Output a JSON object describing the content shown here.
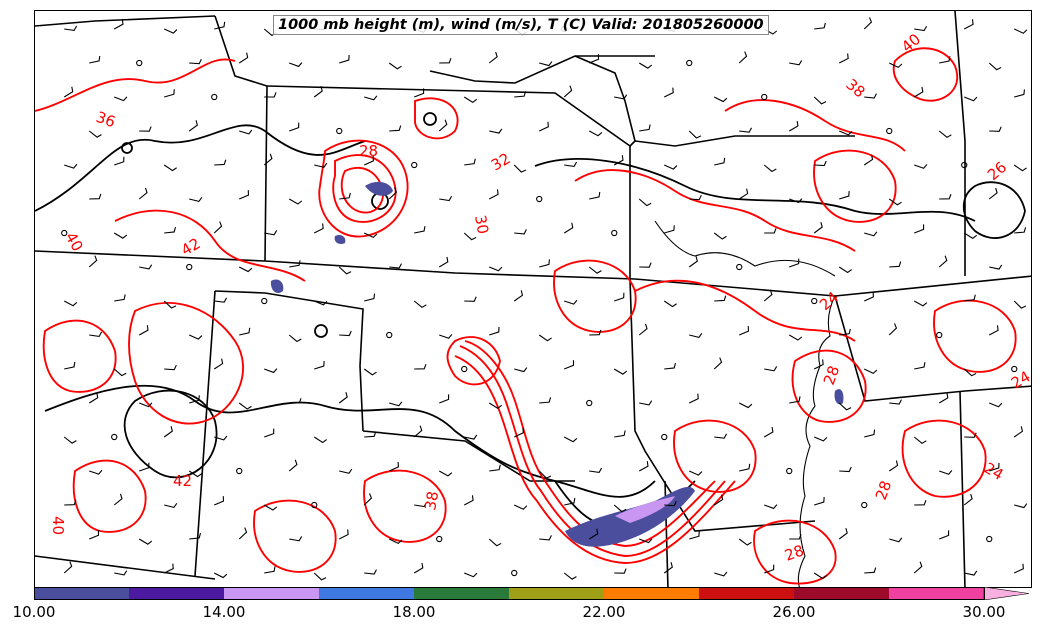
{
  "title": "1000 mb height (m), wind (m/s), T (C) Valid: 201805260000",
  "colorbar": {
    "colors": [
      "#4a4e9c",
      "#4b1aa0",
      "#c997f2",
      "#3f78e0",
      "#2a7a3a",
      "#a0a018",
      "#ff7c00",
      "#cc1010",
      "#9e0a2a",
      "#f040a0",
      "#f8b0e0"
    ],
    "tick_labels": [
      "10.00",
      "14.00",
      "18.00",
      "22.00",
      "26.00",
      "30.00"
    ]
  },
  "contour_labels": [
    {
      "id": "l1",
      "text": "42"
    },
    {
      "id": "l2",
      "text": "40"
    },
    {
      "id": "l3",
      "text": "42"
    },
    {
      "id": "l4",
      "text": "32"
    },
    {
      "id": "l5",
      "text": "30"
    },
    {
      "id": "l6",
      "text": "28"
    },
    {
      "id": "l7",
      "text": "38"
    },
    {
      "id": "l8",
      "text": "40"
    },
    {
      "id": "l9",
      "text": "28"
    },
    {
      "id": "l10",
      "text": "28"
    },
    {
      "id": "l11",
      "text": "24"
    },
    {
      "id": "l12",
      "text": "24"
    },
    {
      "id": "l13",
      "text": "24"
    },
    {
      "id": "l14",
      "text": "28"
    },
    {
      "id": "l15",
      "text": "26"
    },
    {
      "id": "l16",
      "text": "40"
    },
    {
      "id": "l17",
      "text": "38"
    },
    {
      "id": "l18",
      "text": "36"
    }
  ],
  "legend_colors": {
    "temperature": "#ff0000",
    "height": "#000000",
    "wind": "#000000"
  }
}
